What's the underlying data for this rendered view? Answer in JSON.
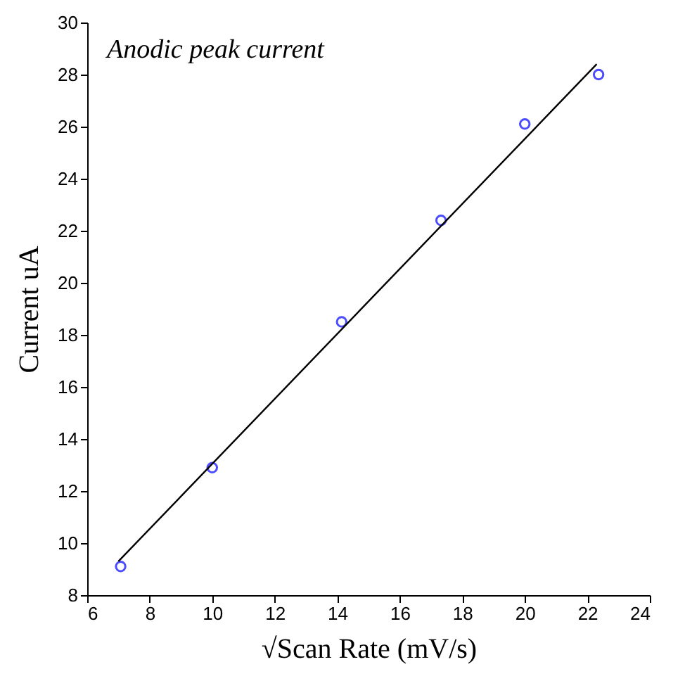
{
  "chart_data": {
    "type": "scatter",
    "xlabel": "√Scan Rate (mV/s)",
    "ylabel": "Current uA",
    "annotations": [
      "Anodic peak current"
    ],
    "series": [
      {
        "color": "#0000ff",
        "marker": "circle",
        "x": [
          7.07,
          10,
          14.14,
          17.32,
          20,
          22.36
        ],
        "values": [
          9.1,
          12.9,
          18.5,
          22.4,
          26.1,
          28.0
        ]
      },
      {
        "type": "line",
        "color": "#000000",
        "line_style": "solid",
        "marker": "none",
        "x": [
          7.0,
          22.3
        ],
        "values": [
          9.3,
          28.4
        ]
      }
    ],
    "xlim": [
      6,
      24
    ],
    "xticks": [
      6,
      8,
      10,
      12,
      14,
      16,
      18,
      20,
      22,
      24
    ],
    "ylim": [
      8,
      30
    ],
    "yticks": [
      8,
      10,
      12,
      14,
      16,
      18,
      20,
      22,
      24,
      26,
      28,
      30
    ],
    "grid": false
  }
}
